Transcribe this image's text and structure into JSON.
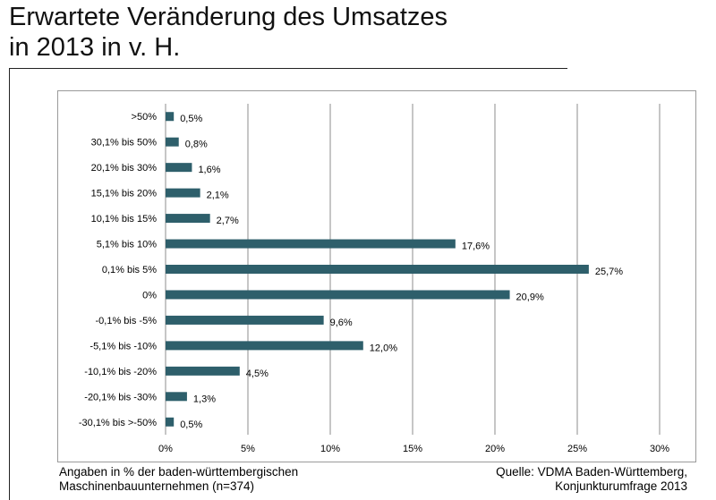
{
  "title_lines": [
    "Erwartete Veränderung des Umsatzes",
    "in 2013 in v. H."
  ],
  "footer": {
    "left_lines": [
      "Angaben in % der baden-württembergischen",
      "Maschinenbauunternehmen (n=374)"
    ],
    "right_lines": [
      "Quelle: VDMA Baden-Württemberg,",
      "Konjunkturumfrage 2013"
    ]
  },
  "colors": {
    "bar": "#2e5f6b",
    "grid": "#8c8c8c"
  },
  "chart_data": {
    "type": "bar",
    "orientation": "horizontal",
    "categories": [
      ">50%",
      "30,1% bis 50%",
      "20,1% bis 30%",
      "15,1% bis 20%",
      "10,1% bis 15%",
      "5,1% bis 10%",
      "0,1% bis 5%",
      "0%",
      "-0,1% bis -5%",
      "-5,1% bis -10%",
      "-10,1% bis -20%",
      "-20,1% bis -30%",
      "-30,1% bis >-50%"
    ],
    "values": [
      0.5,
      0.8,
      1.6,
      2.1,
      2.7,
      17.6,
      25.7,
      20.9,
      9.6,
      12.0,
      4.5,
      1.3,
      0.5
    ],
    "value_labels": [
      "0,5%",
      "0,8%",
      "1,6%",
      "2,1%",
      "2,7%",
      "17,6%",
      "25,7%",
      "20,9%",
      "9,6%",
      "12,0%",
      "4,5%",
      "1,3%",
      "0,5%"
    ],
    "x_ticks": [
      0,
      5,
      10,
      15,
      20,
      25,
      30
    ],
    "x_tick_labels": [
      "0%",
      "5%",
      "10%",
      "15%",
      "20%",
      "25%",
      "30%"
    ],
    "xlim": [
      0,
      30
    ],
    "grid": true,
    "legend": false
  }
}
